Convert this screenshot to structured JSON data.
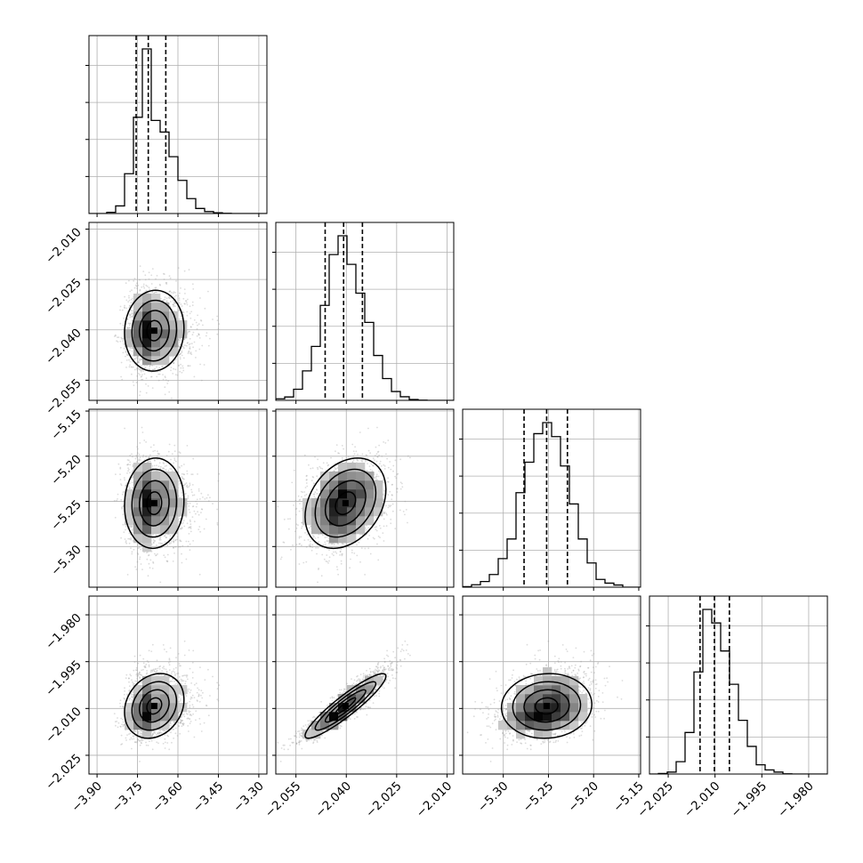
{
  "chart_data": {
    "type": "corner",
    "dims": [
      {
        "index": 0,
        "mean": -3.7,
        "sd": 0.045,
        "skew": 0.9,
        "lim": [
          -3.93,
          -3.27
        ],
        "ticks": [
          -3.9,
          -3.75,
          -3.6,
          -3.45,
          -3.3
        ],
        "tick_labels": [
          "−3.90",
          "−3.75",
          "−3.60",
          "−3.45",
          "−3.30"
        ],
        "quantiles": [
          -3.755,
          -3.71,
          -3.645
        ]
      },
      {
        "index": 1,
        "mean": -2.0405,
        "sd": 0.0058,
        "skew": 0.15,
        "lim": [
          -2.061,
          -2.008
        ],
        "ticks": [
          -2.055,
          -2.04,
          -2.025,
          -2.01
        ],
        "tick_labels": [
          "−2.055",
          "−2.040",
          "−2.025",
          "−2.010"
        ],
        "quantiles": [
          -2.0463,
          -2.0408,
          -2.0352
        ]
      },
      {
        "index": 2,
        "mean": -5.252,
        "sd": 0.025,
        "skew": 0.0,
        "lim": [
          -5.345,
          -5.148
        ],
        "ticks": [
          -5.3,
          -5.25,
          -5.2,
          -5.15
        ],
        "tick_labels": [
          "−5.30",
          "−5.25",
          "−5.20",
          "−5.15"
        ],
        "quantiles": [
          -5.277,
          -5.252,
          -5.229
        ]
      },
      {
        "index": 3,
        "mean": -2.01,
        "sd": 0.0045,
        "skew": 0.6,
        "lim": [
          -2.031,
          -1.974
        ],
        "ticks": [
          -2.025,
          -2.01,
          -1.995,
          -1.98
        ],
        "tick_labels": [
          "−2.025",
          "−2.010",
          "−1.995",
          "−1.980"
        ],
        "quantiles": [
          -2.0148,
          -2.0102,
          -2.0054
        ]
      }
    ],
    "correlations": [
      [
        1.0,
        0.05,
        0.05,
        0.2
      ],
      [
        0.05,
        1.0,
        0.3,
        0.92
      ],
      [
        0.05,
        0.3,
        1.0,
        0.05
      ],
      [
        0.2,
        0.92,
        0.05,
        1.0
      ]
    ],
    "n_samples": 4000,
    "histogram_bins": 20,
    "contour_levels_sigma": [
      0.5,
      1.0,
      1.5,
      2.0
    ],
    "grid": true,
    "colors": {
      "line": "#000000",
      "points": "#9a9a9a",
      "grid": "#b0b0b0"
    }
  }
}
